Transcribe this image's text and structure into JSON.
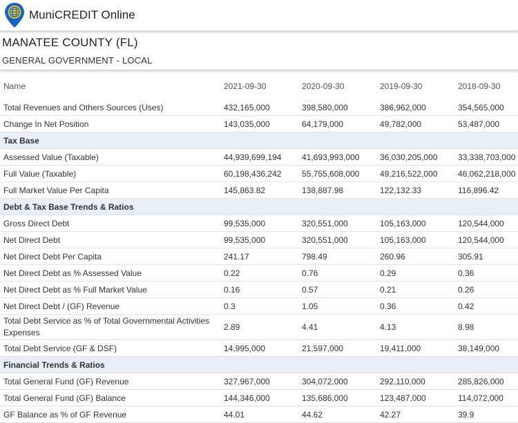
{
  "app": {
    "title": "MuniCREDIT Online"
  },
  "entity": {
    "name": "MANATEE COUNTY (FL)",
    "type": "GENERAL GOVERNMENT - LOCAL"
  },
  "table": {
    "headers": [
      "Name",
      "2021-09-30",
      "2020-09-30",
      "2019-09-30",
      "2018-09-30"
    ],
    "rows": [
      {
        "label": "Total Revenues and Others Sources (Uses)",
        "values": [
          "432,165,000",
          "398,580,000",
          "386,962,000",
          "354,565,000"
        ]
      },
      {
        "label": "Change In Net Position",
        "values": [
          "143,035,000",
          "64,179,000",
          "49,782,000",
          "53,487,000"
        ]
      },
      {
        "section": "Tax Base"
      },
      {
        "label": "Assessed Value (Taxable)",
        "values": [
          "44,939,699,194",
          "41,693,993,000",
          "36,030,205,000",
          "33,338,703,000"
        ]
      },
      {
        "label": "Full Value (Taxable)",
        "values": [
          "60,198,436,242",
          "55,755,608,000",
          "49,216,522,000",
          "46,062,218,000"
        ]
      },
      {
        "label": "Full Market Value Per Capita",
        "values": [
          "145,863.82",
          "138,887.98",
          "122,132.33",
          "116,896.42"
        ]
      },
      {
        "section": "Debt & Tax Base Trends & Ratios"
      },
      {
        "label": "Gross Direct Debt",
        "values": [
          "99,535,000",
          "320,551,000",
          "105,163,000",
          "120,544,000"
        ]
      },
      {
        "label": "Net Direct Debt",
        "values": [
          "99,535,000",
          "320,551,000",
          "105,163,000",
          "120,544,000"
        ]
      },
      {
        "label": "Net Direct Debt Per Capita",
        "values": [
          "241.17",
          "798.49",
          "260.96",
          "305.91"
        ]
      },
      {
        "label": "Net Direct Debt as % Assessed Value",
        "values": [
          "0.22",
          "0.76",
          "0.29",
          "0.36"
        ]
      },
      {
        "label": "Net Direct Debt as % Full Market Value",
        "values": [
          "0.16",
          "0.57",
          "0.21",
          "0.26"
        ]
      },
      {
        "label": "Net Direct Debt / (GF) Revenue",
        "values": [
          "0.3",
          "1.05",
          "0.36",
          "0.42"
        ]
      },
      {
        "label": "Total Debt Service as % of Total Governmental Activities Expenses",
        "values": [
          "2.89",
          "4.41",
          "4.13",
          "8.98"
        ],
        "tall": true
      },
      {
        "label": "Total Debt Service (GF & DSF)",
        "values": [
          "14,995,000",
          "21,597,000",
          "19,411,000",
          "38,149,000"
        ]
      },
      {
        "section": "Financial Trends & Ratios"
      },
      {
        "label": "Total General Fund (GF) Revenue",
        "values": [
          "327,967,000",
          "304,072,000",
          "292,110,000",
          "285,826,000"
        ]
      },
      {
        "label": "Total General Fund (GF) Balance",
        "values": [
          "144,346,000",
          "135,686,000",
          "123,487,000",
          "114,072,000"
        ]
      },
      {
        "label": "GF Balance as % of GF Revenue",
        "values": [
          "44.01",
          "44.62",
          "42.27",
          "39.9"
        ]
      }
    ]
  },
  "colors": {
    "brand_blue": "#1565c0",
    "logo_gold": "#f4c430",
    "section_bg": "#e8eff7"
  },
  "icons": {
    "logo": "location-pin-globe-icon"
  }
}
